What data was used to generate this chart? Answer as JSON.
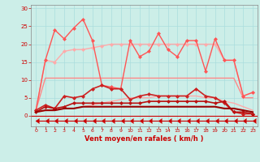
{
  "x": [
    0,
    1,
    2,
    3,
    4,
    5,
    6,
    7,
    8,
    9,
    10,
    11,
    12,
    13,
    14,
    15,
    16,
    17,
    18,
    19,
    20,
    21,
    22,
    23
  ],
  "series": [
    {
      "name": "light_pink_envelope_top",
      "color": "#ffaaaa",
      "lw": 1.0,
      "marker": "D",
      "markersize": 2.0,
      "y": [
        1.5,
        15.5,
        15.0,
        18.0,
        18.5,
        18.5,
        19.0,
        19.5,
        20.0,
        20.0,
        20.0,
        20.0,
        20.0,
        20.0,
        20.0,
        20.0,
        20.0,
        20.0,
        20.0,
        20.0,
        15.5,
        15.5,
        5.5,
        6.5
      ]
    },
    {
      "name": "light_pink_envelope_bot",
      "color": "#ffaaaa",
      "lw": 1.0,
      "marker": null,
      "markersize": 0,
      "y": [
        1.0,
        1.5,
        1.5,
        2.0,
        2.0,
        2.5,
        3.0,
        3.5,
        4.0,
        4.5,
        5.0,
        5.0,
        5.0,
        5.5,
        5.5,
        5.5,
        5.5,
        5.5,
        5.0,
        5.0,
        4.0,
        3.5,
        2.5,
        1.5
      ]
    },
    {
      "name": "pink_gust_line",
      "color": "#ff8888",
      "lw": 1.0,
      "marker": null,
      "markersize": 0,
      "y": [
        1.5,
        10.5,
        10.5,
        10.5,
        10.5,
        10.5,
        10.5,
        10.5,
        10.5,
        10.5,
        10.5,
        10.5,
        10.5,
        10.5,
        10.5,
        10.5,
        10.5,
        10.5,
        10.5,
        10.5,
        10.5,
        10.5,
        5.0,
        5.0
      ]
    },
    {
      "name": "red_gust_jagged",
      "color": "#ff5555",
      "lw": 1.0,
      "marker": "D",
      "markersize": 2.0,
      "y": [
        1.5,
        15.5,
        24.0,
        21.5,
        24.5,
        27.0,
        21.0,
        8.5,
        8.0,
        7.5,
        21.0,
        16.5,
        18.0,
        23.0,
        18.5,
        16.5,
        21.0,
        21.0,
        12.5,
        21.5,
        15.5,
        15.5,
        5.5,
        6.5
      ]
    },
    {
      "name": "dark_red_mean",
      "color": "#cc2222",
      "lw": 1.2,
      "marker": "D",
      "markersize": 2.0,
      "y": [
        1.5,
        3.0,
        2.0,
        5.5,
        5.0,
        5.5,
        7.5,
        8.5,
        7.5,
        7.5,
        4.5,
        5.5,
        6.0,
        5.5,
        5.5,
        5.5,
        5.5,
        7.5,
        5.5,
        5.0,
        3.5,
        1.0,
        0.5,
        0.5
      ]
    },
    {
      "name": "dark_red_line2",
      "color": "#bb1111",
      "lw": 1.2,
      "marker": "D",
      "markersize": 2.0,
      "y": [
        1.0,
        2.5,
        2.0,
        2.5,
        3.5,
        3.5,
        3.5,
        3.5,
        3.5,
        3.5,
        3.5,
        3.5,
        4.0,
        4.0,
        4.0,
        4.0,
        4.0,
        4.0,
        4.0,
        3.5,
        4.0,
        1.0,
        1.0,
        0.5
      ]
    },
    {
      "name": "dark_red_flat",
      "color": "#990000",
      "lw": 1.5,
      "marker": null,
      "markersize": 0,
      "y": [
        1.0,
        1.5,
        1.5,
        2.0,
        2.0,
        2.5,
        2.5,
        2.5,
        2.5,
        2.5,
        2.5,
        2.5,
        2.5,
        2.5,
        2.5,
        2.5,
        2.5,
        2.5,
        2.5,
        2.5,
        2.0,
        2.0,
        1.5,
        1.0
      ]
    },
    {
      "name": "bottom_arrows",
      "color": "#cc0000",
      "lw": 0.8,
      "marker": 4,
      "markersize": 4,
      "y": [
        -1.5,
        -1.5,
        -1.5,
        -1.5,
        -1.5,
        -1.5,
        -1.5,
        -1.5,
        -1.5,
        -1.5,
        -1.5,
        -1.5,
        -1.5,
        -1.5,
        -1.5,
        -1.5,
        -1.5,
        -1.5,
        -1.5,
        -1.5,
        -1.5,
        -1.5,
        -1.5,
        -1.5
      ]
    }
  ],
  "xlim": [
    -0.5,
    23.5
  ],
  "ylim": [
    -3,
    31
  ],
  "yticks": [
    0,
    5,
    10,
    15,
    20,
    25,
    30
  ],
  "xticks": [
    0,
    1,
    2,
    3,
    4,
    5,
    6,
    7,
    8,
    9,
    10,
    11,
    12,
    13,
    14,
    15,
    16,
    17,
    18,
    19,
    20,
    21,
    22,
    23
  ],
  "xlabel": "Vent moyen/en rafales ( km/h )",
  "bg_color": "#cceee8",
  "grid_color": "#aadddd",
  "tick_color": "#cc0000",
  "label_color": "#cc0000"
}
